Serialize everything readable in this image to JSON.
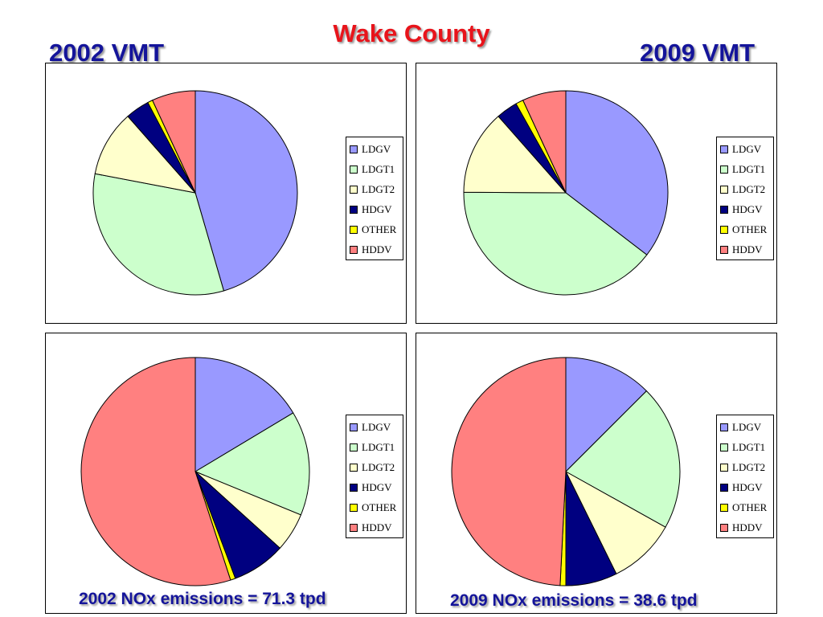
{
  "title": "Wake County",
  "header_left": "2002 VMT",
  "header_right": "2009 VMT",
  "legend_labels": [
    "LDGV",
    "LDGT1",
    "LDGT2",
    "HDGV",
    "OTHER",
    "HDDV"
  ],
  "colors": {
    "LDGV": "#9999ff",
    "LDGT1": "#ccffcc",
    "LDGT2": "#ffffcc",
    "HDGV": "#000080",
    "OTHER": "#ffff00",
    "HDDV": "#ff8080",
    "title": "#e8141b",
    "heading": "#14149a"
  },
  "captions": {
    "nox_2002": "2002 NOx emissions = 71.3 tpd",
    "nox_2009": "2009 NOx emissions = 38.6 tpd"
  },
  "chart_data": [
    {
      "type": "pie",
      "title": "2002 VMT",
      "categories": [
        "LDGV",
        "LDGT1",
        "LDGT2",
        "HDGV",
        "OTHER",
        "HDDV"
      ],
      "values": [
        45.5,
        32.5,
        10.5,
        3.8,
        0.8,
        6.9
      ],
      "legend": "right"
    },
    {
      "type": "pie",
      "title": "2009 VMT",
      "categories": [
        "LDGV",
        "LDGT1",
        "LDGT2",
        "HDGV",
        "OTHER",
        "HDDV"
      ],
      "values": [
        35.4,
        39.7,
        13.4,
        3.4,
        1.2,
        6.9
      ],
      "legend": "right"
    },
    {
      "type": "pie",
      "title": "2002 NOx emissions = 71.3 tpd",
      "categories": [
        "LDGV",
        "LDGT1",
        "LDGT2",
        "HDGV",
        "OTHER",
        "HDDV"
      ],
      "values": [
        16.4,
        14.8,
        5.5,
        7.6,
        0.7,
        55.0
      ],
      "legend": "right"
    },
    {
      "type": "pie",
      "title": "2009 NOx emissions = 38.6 tpd",
      "categories": [
        "LDGV",
        "LDGT1",
        "LDGT2",
        "HDGV",
        "OTHER",
        "HDDV"
      ],
      "values": [
        12.5,
        20.6,
        9.6,
        7.3,
        0.8,
        49.2
      ],
      "legend": "right"
    }
  ]
}
